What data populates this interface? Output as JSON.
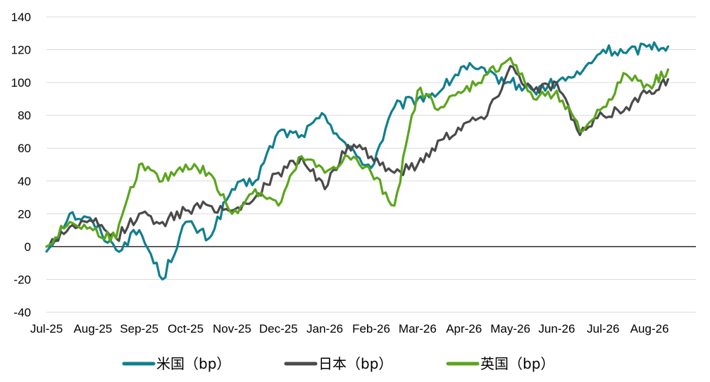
{
  "chart_data": {
    "type": "line",
    "title": "",
    "xlabel": "",
    "ylabel": "",
    "ylim": [
      -40,
      140
    ],
    "yticks": [
      -40,
      -20,
      0,
      20,
      40,
      60,
      80,
      100,
      120,
      140
    ],
    "negative_tick_color": "#e00000",
    "grid": true,
    "legend_position": "bottom",
    "x_labels": [
      "Jul-25",
      "Aug-25",
      "Sep-25",
      "Oct-25",
      "Nov-25",
      "Dec-25",
      "Jan-26",
      "Feb-26",
      "Mar-26",
      "Apr-26",
      "May-26",
      "Jun-26",
      "Jul-26",
      "Aug-26"
    ],
    "x": [
      0,
      0.5,
      1,
      1.5,
      2,
      2.5,
      3,
      3.5,
      4,
      4.5,
      5,
      5.5,
      6,
      6.5,
      7,
      7.5,
      8,
      8.5,
      9,
      9.5,
      10,
      10.5,
      11,
      11.5,
      12,
      12.5,
      13,
      13.4
    ],
    "series": [
      {
        "name": "米国（bp）",
        "color": "#0f7f8f",
        "values": [
          -3,
          20,
          15,
          -2,
          10,
          -20,
          15,
          5,
          35,
          40,
          70,
          68,
          80,
          60,
          48,
          85,
          90,
          95,
          110,
          105,
          100,
          95,
          100,
          105,
          120,
          118,
          123,
          122
        ]
      },
      {
        "name": "日本（bp）",
        "color": "#4a4a4a",
        "values": [
          0,
          12,
          15,
          5,
          20,
          15,
          22,
          25,
          22,
          30,
          45,
          55,
          35,
          62,
          55,
          45,
          50,
          65,
          75,
          80,
          110,
          95,
          100,
          68,
          80,
          85,
          95,
          102
        ]
      },
      {
        "name": "英国（bp）",
        "color": "#5aa51c",
        "values": [
          0,
          15,
          10,
          5,
          50,
          40,
          50,
          45,
          20,
          35,
          25,
          55,
          45,
          55,
          45,
          25,
          95,
          85,
          95,
          105,
          115,
          90,
          95,
          70,
          85,
          105,
          98,
          108
        ]
      }
    ]
  }
}
